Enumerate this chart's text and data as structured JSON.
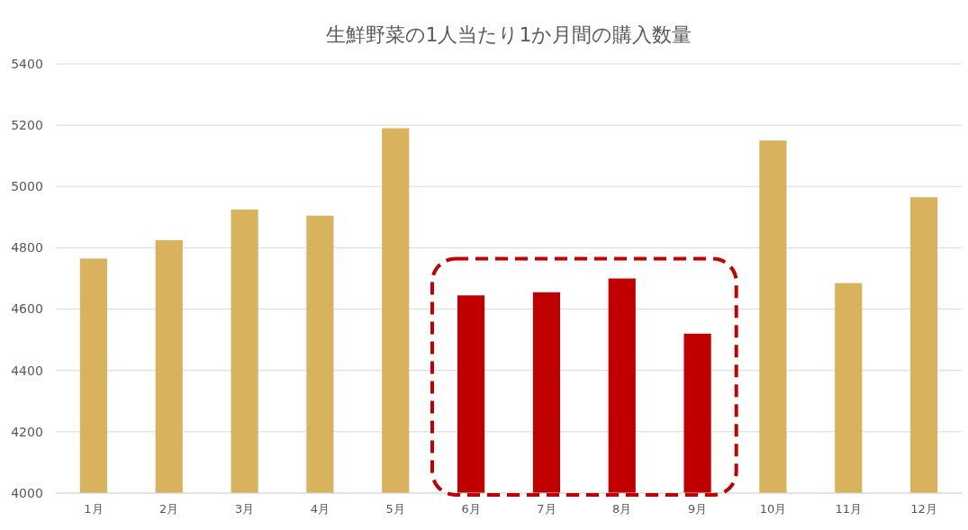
{
  "chart_data": {
    "type": "bar",
    "title": "生鮮野菜の1人当たり1か月間の購入数量",
    "categories": [
      "1月",
      "2月",
      "3月",
      "4月",
      "5月",
      "6月",
      "7月",
      "8月",
      "9月",
      "10月",
      "11月",
      "12月"
    ],
    "values": [
      4765,
      4825,
      4925,
      4905,
      5190,
      4645,
      4655,
      4700,
      4520,
      5150,
      4685,
      4965
    ],
    "colors": [
      "#d8b25c",
      "#d8b25c",
      "#d8b25c",
      "#d8b25c",
      "#d8b25c",
      "#c00000",
      "#c00000",
      "#c00000",
      "#c00000",
      "#d8b25c",
      "#d8b25c",
      "#d8b25c"
    ],
    "ylim": [
      4000,
      5400
    ],
    "yticks": [
      4000,
      4200,
      4400,
      4600,
      4800,
      5000,
      5200,
      5400
    ],
    "grid": "y"
  }
}
